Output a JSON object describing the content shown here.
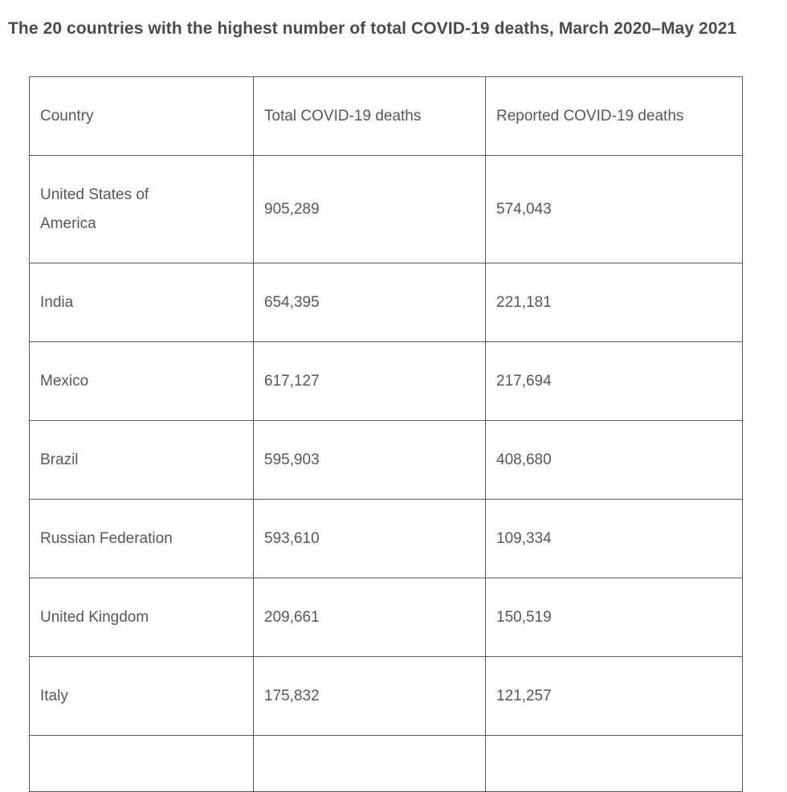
{
  "page": {
    "title": "The 20 countries with the highest number of total COVID-19 deaths, March 2020–May 2021"
  },
  "table": {
    "columns": {
      "country": "Country",
      "total": "Total COVID-19 deaths",
      "reported": "Reported COVID-19 deaths"
    },
    "rows": [
      {
        "country": "United States of America",
        "total": "905,289",
        "reported": "574,043"
      },
      {
        "country": "India",
        "total": "654,395",
        "reported": "221,181"
      },
      {
        "country": "Mexico",
        "total": "617,127",
        "reported": "217,694"
      },
      {
        "country": "Brazil",
        "total": "595,903",
        "reported": "408,680"
      },
      {
        "country": "Russian Federation",
        "total": "593,610",
        "reported": "109,334"
      },
      {
        "country": "United Kingdom",
        "total": "209,661",
        "reported": "150,519"
      },
      {
        "country": "Italy",
        "total": "175,832",
        "reported": "121,257"
      }
    ]
  },
  "colors": {
    "title_text": "#4a4b4d",
    "cell_text": "#55575b",
    "table_border": "#5b5c5e",
    "background": "#ffffff"
  },
  "chart_data": {
    "type": "table",
    "title": "The 20 countries with the highest number of total COVID-19 deaths, March 2020–May 2021",
    "columns": [
      "Country",
      "Total COVID-19 deaths",
      "Reported COVID-19 deaths"
    ],
    "rows": [
      [
        "United States of America",
        905289,
        574043
      ],
      [
        "India",
        654395,
        221181
      ],
      [
        "Mexico",
        617127,
        217694
      ],
      [
        "Brazil",
        595903,
        408680
      ],
      [
        "Russian Federation",
        593610,
        109334
      ],
      [
        "United Kingdom",
        209661,
        150519
      ],
      [
        "Italy",
        175832,
        121257
      ]
    ],
    "layout_hints": {
      "rows_visible": 7,
      "eighth_row_partially_cut_off": true,
      "grid": true
    }
  }
}
